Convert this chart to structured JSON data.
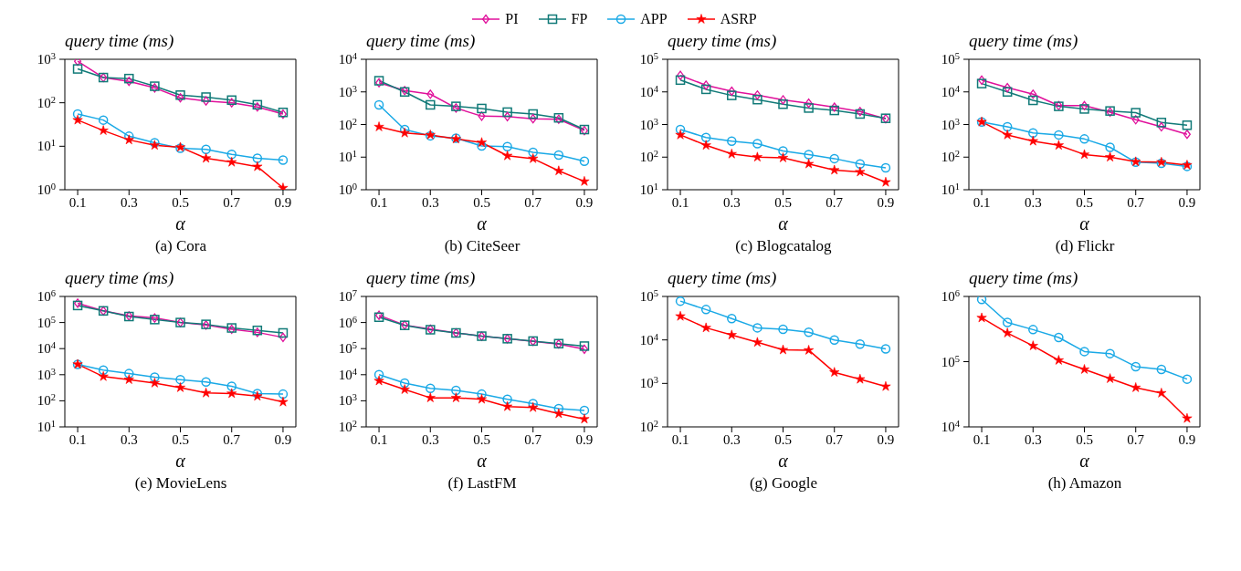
{
  "chart_data": [
    {
      "type": "line",
      "title": "(a) Cora",
      "ylabel": "query time (ms)",
      "xlabel": "α",
      "log": "y",
      "legend": "top",
      "x": [
        0.1,
        0.2,
        0.3,
        0.4,
        0.5,
        0.6,
        0.7,
        0.8,
        0.9
      ],
      "xlim": [
        0.05,
        0.95
      ],
      "xticks": [
        0.1,
        0.3,
        0.5,
        0.7,
        0.9
      ],
      "ylim": [
        1,
        1000
      ],
      "yticks": [
        {
          "value": 1,
          "label": "10$^{0}$"
        },
        {
          "value": 10,
          "label": "10$^{1}$"
        },
        {
          "value": 100,
          "label": "10$^{2}$"
        },
        {
          "value": 1000,
          "label": "10$^{3}$"
        }
      ],
      "series": [
        {
          "name": "PI",
          "color": "#e0109b",
          "marker": "diamond",
          "values": [
            900,
            380,
            310,
            220,
            130,
            110,
            100,
            80,
            55
          ]
        },
        {
          "name": "FP",
          "color": "#117a78",
          "marker": "square",
          "values": [
            600,
            380,
            360,
            240,
            150,
            135,
            115,
            90,
            60
          ]
        },
        {
          "name": "APP",
          "color": "#1aa9e6",
          "marker": "circle",
          "values": [
            55,
            40,
            17,
            12,
            9,
            8.5,
            6.5,
            5.3,
            4.8
          ]
        },
        {
          "name": "ASRP",
          "color": "#ff0000",
          "marker": "star",
          "values": [
            40,
            23,
            14,
            10.5,
            9.5,
            5.3,
            4.3,
            3.4,
            1.1
          ]
        }
      ]
    },
    {
      "type": "line",
      "title": "(b) CiteSeer",
      "ylabel": "query time (ms)",
      "xlabel": "α",
      "log": "y",
      "x": [
        0.1,
        0.2,
        0.3,
        0.4,
        0.5,
        0.6,
        0.7,
        0.8,
        0.9
      ],
      "xlim": [
        0.05,
        0.95
      ],
      "xticks": [
        0.1,
        0.3,
        0.5,
        0.7,
        0.9
      ],
      "ylim": [
        1,
        10000
      ],
      "yticks": [
        {
          "value": 1,
          "label": "10$^{0}$"
        },
        {
          "value": 10,
          "label": "10$^{1}$"
        },
        {
          "value": 100,
          "label": "10$^{2}$"
        },
        {
          "value": 1000,
          "label": "10$^{3}$"
        },
        {
          "value": 10000,
          "label": "10$^{4}$"
        }
      ],
      "series": [
        {
          "color": "#e0109b",
          "marker": "diamond",
          "values": [
            1900,
            1100,
            850,
            320,
            180,
            175,
            150,
            145,
            65
          ]
        },
        {
          "color": "#117a78",
          "marker": "square",
          "values": [
            2200,
            1000,
            400,
            360,
            310,
            240,
            210,
            160,
            70
          ]
        },
        {
          "color": "#1aa9e6",
          "marker": "circle",
          "values": [
            400,
            70,
            45,
            38,
            22,
            21,
            14,
            11.5,
            7.5
          ]
        },
        {
          "color": "#ff0000",
          "marker": "star",
          "values": [
            85,
            55,
            48,
            36,
            28,
            11,
            9,
            3.8,
            1.8
          ]
        }
      ]
    },
    {
      "type": "line",
      "title": "(c) Blogcatalog",
      "ylabel": "query time (ms)",
      "xlabel": "α",
      "log": "y",
      "x": [
        0.1,
        0.2,
        0.3,
        0.4,
        0.5,
        0.6,
        0.7,
        0.8,
        0.9
      ],
      "xlim": [
        0.05,
        0.95
      ],
      "xticks": [
        0.1,
        0.3,
        0.5,
        0.7,
        0.9
      ],
      "ylim": [
        10,
        100000
      ],
      "yticks": [
        {
          "value": 10,
          "label": "10$^{1}$"
        },
        {
          "value": 100,
          "label": "10$^{2}$"
        },
        {
          "value": 1000,
          "label": "10$^{3}$"
        },
        {
          "value": 10000,
          "label": "10$^{4}$"
        },
        {
          "value": 100000,
          "label": "10$^{5}$"
        }
      ],
      "series": [
        {
          "color": "#e0109b",
          "marker": "diamond",
          "values": [
            32000,
            16000,
            10500,
            8000,
            5700,
            4500,
            3400,
            2500,
            1500
          ]
        },
        {
          "color": "#117a78",
          "marker": "square",
          "values": [
            23000,
            12000,
            7800,
            5800,
            4200,
            3200,
            2700,
            2100,
            1550
          ]
        },
        {
          "color": "#1aa9e6",
          "marker": "circle",
          "values": [
            700,
            400,
            310,
            260,
            155,
            120,
            90,
            62,
            47
          ]
        },
        {
          "color": "#ff0000",
          "marker": "star",
          "values": [
            480,
            230,
            125,
            100,
            95,
            62,
            40,
            35,
            17
          ]
        }
      ]
    },
    {
      "type": "line",
      "title": "(d) Flickr",
      "ylabel": "query time (ms)",
      "xlabel": "α",
      "log": "y",
      "x": [
        0.1,
        0.2,
        0.3,
        0.4,
        0.5,
        0.6,
        0.7,
        0.8,
        0.9
      ],
      "xlim": [
        0.05,
        0.95
      ],
      "xticks": [
        0.1,
        0.3,
        0.5,
        0.7,
        0.9
      ],
      "ylim": [
        10,
        100000
      ],
      "yticks": [
        {
          "value": 10,
          "label": "10$^{1}$"
        },
        {
          "value": 100,
          "label": "10$^{2}$"
        },
        {
          "value": 1000,
          "label": "10$^{3}$"
        },
        {
          "value": 10000,
          "label": "10$^{4}$"
        },
        {
          "value": 100000,
          "label": "10$^{5}$"
        }
      ],
      "series": [
        {
          "color": "#e0109b",
          "marker": "diamond",
          "values": [
            23000,
            13500,
            8500,
            3800,
            3800,
            2400,
            1400,
            850,
            500
          ]
        },
        {
          "color": "#117a78",
          "marker": "square",
          "values": [
            18000,
            10000,
            5500,
            3600,
            3000,
            2600,
            2300,
            1150,
            950
          ]
        },
        {
          "color": "#1aa9e6",
          "marker": "circle",
          "values": [
            1200,
            850,
            550,
            480,
            360,
            200,
            70,
            65,
            52
          ]
        },
        {
          "color": "#ff0000",
          "marker": "star",
          "values": [
            1200,
            480,
            310,
            230,
            120,
            100,
            72,
            70,
            57
          ]
        }
      ]
    },
    {
      "type": "line",
      "title": "(e) MovieLens",
      "ylabel": "query time (ms)",
      "xlabel": "α",
      "log": "y",
      "x": [
        0.1,
        0.2,
        0.3,
        0.4,
        0.5,
        0.6,
        0.7,
        0.8,
        0.9
      ],
      "xlim": [
        0.05,
        0.95
      ],
      "xticks": [
        0.1,
        0.3,
        0.5,
        0.7,
        0.9
      ],
      "ylim": [
        10,
        1000000
      ],
      "yticks": [
        {
          "value": 10,
          "label": "10$^{1}$"
        },
        {
          "value": 100,
          "label": "10$^{2}$"
        },
        {
          "value": 1000,
          "label": "10$^{3}$"
        },
        {
          "value": 10000,
          "label": "10$^{4}$"
        },
        {
          "value": 100000,
          "label": "10$^{5}$"
        },
        {
          "value": 1000000,
          "label": "10$^{6}$"
        }
      ],
      "series": [
        {
          "color": "#e0109b",
          "marker": "diamond",
          "values": [
            550000,
            280000,
            180000,
            150000,
            100000,
            80000,
            55000,
            42000,
            27000
          ]
        },
        {
          "color": "#117a78",
          "marker": "square",
          "values": [
            450000,
            280000,
            170000,
            130000,
            100000,
            85000,
            62000,
            50000,
            40000
          ]
        },
        {
          "color": "#1aa9e6",
          "marker": "circle",
          "values": [
            2500,
            1500,
            1100,
            800,
            650,
            530,
            360,
            190,
            180
          ]
        },
        {
          "color": "#ff0000",
          "marker": "star",
          "values": [
            2500,
            850,
            650,
            480,
            320,
            200,
            190,
            150,
            90
          ]
        }
      ]
    },
    {
      "type": "line",
      "title": "(f) LastFM",
      "ylabel": "query time (ms)",
      "xlabel": "α",
      "log": "y",
      "x": [
        0.1,
        0.2,
        0.3,
        0.4,
        0.5,
        0.6,
        0.7,
        0.8,
        0.9
      ],
      "xlim": [
        0.05,
        0.95
      ],
      "xticks": [
        0.1,
        0.3,
        0.5,
        0.7,
        0.9
      ],
      "ylim": [
        100,
        10000000
      ],
      "yticks": [
        {
          "value": 100,
          "label": "10$^{2}$"
        },
        {
          "value": 1000,
          "label": "10$^{3}$"
        },
        {
          "value": 10000,
          "label": "10$^{4}$"
        },
        {
          "value": 100000,
          "label": "10$^{5}$"
        },
        {
          "value": 1000000,
          "label": "10$^{6}$"
        },
        {
          "value": 10000000,
          "label": "10$^{7}$"
        }
      ],
      "series": [
        {
          "color": "#e0109b",
          "marker": "diamond",
          "values": [
            1900000,
            800000,
            560000,
            400000,
            300000,
            240000,
            190000,
            150000,
            95000
          ]
        },
        {
          "color": "#117a78",
          "marker": "square",
          "values": [
            1600000,
            780000,
            530000,
            400000,
            300000,
            240000,
            195000,
            155000,
            125000
          ]
        },
        {
          "color": "#1aa9e6",
          "marker": "circle",
          "values": [
            10000,
            4800,
            3000,
            2500,
            1800,
            1150,
            780,
            500,
            430
          ]
        },
        {
          "color": "#ff0000",
          "marker": "star",
          "values": [
            5800,
            2700,
            1300,
            1300,
            1150,
            600,
            550,
            320,
            200
          ]
        }
      ]
    },
    {
      "type": "line",
      "title": "(g) Google",
      "ylabel": "query time (ms)",
      "xlabel": "α",
      "log": "y",
      "x": [
        0.1,
        0.2,
        0.3,
        0.4,
        0.5,
        0.6,
        0.7,
        0.8,
        0.9
      ],
      "xlim": [
        0.05,
        0.95
      ],
      "xticks": [
        0.1,
        0.3,
        0.5,
        0.7,
        0.9
      ],
      "ylim": [
        100,
        100000
      ],
      "yticks": [
        {
          "value": 100,
          "label": "10$^{2}$"
        },
        {
          "value": 1000,
          "label": "10$^{3}$"
        },
        {
          "value": 10000,
          "label": "10$^{4}$"
        },
        {
          "value": 100000,
          "label": "10$^{5}$"
        }
      ],
      "series": [
        {
          "color": "#1aa9e6",
          "marker": "circle",
          "values": [
            78000,
            50000,
            31000,
            19000,
            17500,
            15000,
            10000,
            8000,
            6200
          ]
        },
        {
          "color": "#ff0000",
          "marker": "star",
          "values": [
            35000,
            19000,
            13000,
            8800,
            5900,
            5800,
            1800,
            1250,
            850
          ]
        }
      ]
    },
    {
      "type": "line",
      "title": "(h) Amazon",
      "ylabel": "query time (ms)",
      "xlabel": "α",
      "log": "y",
      "x": [
        0.1,
        0.2,
        0.3,
        0.4,
        0.5,
        0.6,
        0.7,
        0.8,
        0.9
      ],
      "xlim": [
        0.05,
        0.95
      ],
      "xticks": [
        0.1,
        0.3,
        0.5,
        0.7,
        0.9
      ],
      "ylim": [
        10000,
        1000000
      ],
      "yticks": [
        {
          "value": 10000,
          "label": "10$^{4}$"
        },
        {
          "value": 100000,
          "label": "10$^{5}$"
        },
        {
          "value": 1000000,
          "label": "10$^{6}$"
        }
      ],
      "series": [
        {
          "color": "#1aa9e6",
          "marker": "circle",
          "values": [
            900000,
            400000,
            310000,
            235000,
            143000,
            133000,
            84000,
            76000,
            54000
          ]
        },
        {
          "color": "#ff0000",
          "marker": "star",
          "values": [
            470000,
            275000,
            175000,
            105000,
            76000,
            55000,
            40000,
            33000,
            13500
          ]
        }
      ]
    }
  ]
}
